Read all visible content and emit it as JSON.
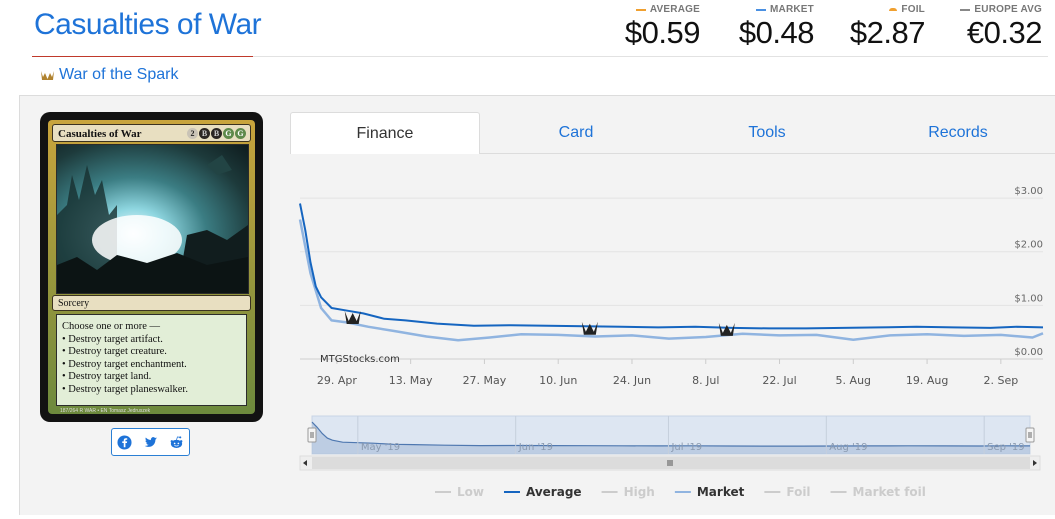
{
  "card": {
    "title": "Casualties of War",
    "set_name": "War of the Spark",
    "type_line": "Sorcery",
    "rules_text": [
      "Choose one or more —",
      "• Destroy target artifact.",
      "• Destroy target creature.",
      "• Destroy target enchantment.",
      "• Destroy target land.",
      "• Destroy target planeswalker."
    ],
    "mana_cost": [
      "2",
      "B",
      "B",
      "G",
      "G"
    ],
    "footer": "187/264 R  WAR • EN  Tomasz Jedruszek"
  },
  "prices": [
    {
      "label": "AVERAGE",
      "value": "$0.59",
      "color": "#f0a030"
    },
    {
      "label": "MARKET",
      "value": "$0.48",
      "color": "#4a90e2"
    },
    {
      "label": "FOIL",
      "value": "$2.87",
      "color": "#f0a030"
    },
    {
      "label": "EUROPE AVG",
      "value": "€0.32",
      "color": "#888888"
    }
  ],
  "tabs": [
    {
      "label": "Finance",
      "active": true
    },
    {
      "label": "Card",
      "active": false
    },
    {
      "label": "Tools",
      "active": false
    },
    {
      "label": "Records",
      "active": false
    }
  ],
  "social": [
    "facebook-icon",
    "twitter-icon",
    "reddit-icon"
  ],
  "chart_data": {
    "type": "line",
    "watermark": "MTGStocks.com",
    "x_ticks": [
      "29. Apr",
      "13. May",
      "27. May",
      "10. Jun",
      "24. Jun",
      "8. Jul",
      "22. Jul",
      "5. Aug",
      "19. Aug",
      "2. Sep"
    ],
    "y_ticks": [
      "$0.00",
      "$1.00",
      "$2.00",
      "$3.00"
    ],
    "ylim": [
      0,
      3.3
    ],
    "x_range": [
      "2019-04-22",
      "2019-09-10"
    ],
    "navigator_labels": [
      "May '19",
      "Jun '19",
      "Jul '19",
      "Aug '19",
      "Sep '19"
    ],
    "legend": [
      {
        "name": "Low",
        "color": "#cccccc",
        "active": false
      },
      {
        "name": "Average",
        "color": "#1565c0",
        "active": true
      },
      {
        "name": "High",
        "color": "#cccccc",
        "active": false
      },
      {
        "name": "Market",
        "color": "#90b4e0",
        "active": true
      },
      {
        "name": "Foil",
        "color": "#cccccc",
        "active": false
      },
      {
        "name": "Market foil",
        "color": "#cccccc",
        "active": false
      }
    ],
    "series": [
      {
        "name": "Average",
        "color": "#1565c0",
        "points": [
          [
            "2019-04-22",
            2.9
          ],
          [
            "2019-04-23",
            2.4
          ],
          [
            "2019-04-24",
            1.8
          ],
          [
            "2019-04-25",
            1.35
          ],
          [
            "2019-04-26",
            1.15
          ],
          [
            "2019-04-28",
            0.95
          ],
          [
            "2019-05-01",
            0.9
          ],
          [
            "2019-05-04",
            0.85
          ],
          [
            "2019-05-08",
            0.75
          ],
          [
            "2019-05-12",
            0.72
          ],
          [
            "2019-05-18",
            0.66
          ],
          [
            "2019-05-25",
            0.62
          ],
          [
            "2019-06-01",
            0.63
          ],
          [
            "2019-06-08",
            0.62
          ],
          [
            "2019-06-15",
            0.61
          ],
          [
            "2019-06-22",
            0.6
          ],
          [
            "2019-06-29",
            0.59
          ],
          [
            "2019-07-06",
            0.6
          ],
          [
            "2019-07-13",
            0.58
          ],
          [
            "2019-07-20",
            0.57
          ],
          [
            "2019-07-27",
            0.57
          ],
          [
            "2019-08-03",
            0.58
          ],
          [
            "2019-08-10",
            0.59
          ],
          [
            "2019-08-17",
            0.6
          ],
          [
            "2019-08-24",
            0.59
          ],
          [
            "2019-08-31",
            0.58
          ],
          [
            "2019-09-05",
            0.6
          ],
          [
            "2019-09-10",
            0.59
          ]
        ]
      },
      {
        "name": "Market",
        "color": "#90b4e0",
        "points": [
          [
            "2019-04-22",
            2.6
          ],
          [
            "2019-04-24",
            1.6
          ],
          [
            "2019-04-26",
            0.95
          ],
          [
            "2019-04-28",
            0.72
          ],
          [
            "2019-05-01",
            0.68
          ],
          [
            "2019-05-05",
            0.6
          ],
          [
            "2019-05-10",
            0.52
          ],
          [
            "2019-05-16",
            0.42
          ],
          [
            "2019-05-22",
            0.35
          ],
          [
            "2019-05-28",
            0.4
          ],
          [
            "2019-06-03",
            0.46
          ],
          [
            "2019-06-10",
            0.45
          ],
          [
            "2019-06-17",
            0.42
          ],
          [
            "2019-06-24",
            0.44
          ],
          [
            "2019-07-01",
            0.38
          ],
          [
            "2019-07-08",
            0.41
          ],
          [
            "2019-07-15",
            0.47
          ],
          [
            "2019-07-22",
            0.44
          ],
          [
            "2019-07-29",
            0.45
          ],
          [
            "2019-08-05",
            0.36
          ],
          [
            "2019-08-12",
            0.44
          ],
          [
            "2019-08-19",
            0.46
          ],
          [
            "2019-08-26",
            0.43
          ],
          [
            "2019-09-02",
            0.45
          ],
          [
            "2019-09-08",
            0.4
          ],
          [
            "2019-09-10",
            0.48
          ]
        ]
      }
    ]
  }
}
